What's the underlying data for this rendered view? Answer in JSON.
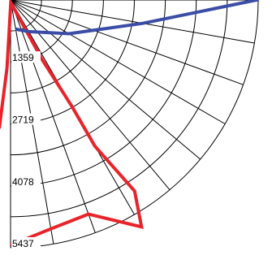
{
  "chart_data": {
    "type": "line",
    "coordinate_system": "polar",
    "title": "",
    "angle_range_deg": [
      0,
      90
    ],
    "angle_grid_step_deg": 10,
    "radial_range": [
      0,
      5437
    ],
    "radial_ticks": [
      {
        "value": 1359,
        "label": "1359"
      },
      {
        "value": 2719,
        "label": "2719"
      },
      {
        "value": 4078,
        "label": "4078"
      },
      {
        "value": 5437,
        "label": "5437"
      }
    ],
    "grid": true,
    "series": [
      {
        "color": "#e8242a",
        "points": [
          {
            "angle_deg": 0,
            "r": 5380
          },
          {
            "angle_deg": 10,
            "r": 5100
          },
          {
            "angle_deg": 20,
            "r": 5000
          },
          {
            "angle_deg": 30,
            "r": 5750
          },
          {
            "angle_deg": 33,
            "r": 5000
          },
          {
            "angle_deg": 30,
            "r": 3700
          },
          {
            "angle_deg": 30,
            "r": 2700
          },
          {
            "angle_deg": 28,
            "r": 1500
          },
          {
            "angle_deg": 5,
            "r": 60
          },
          {
            "angle_deg": -3,
            "r": 1500
          },
          {
            "angle_deg": -5,
            "r": 2800
          },
          {
            "angle_deg": -10,
            "r": 3500
          },
          {
            "angle_deg": -15,
            "r": 4600
          },
          {
            "angle_deg": -15,
            "r": 5300
          }
        ]
      },
      {
        "color": "#3b4da6",
        "points": [
          {
            "angle_deg": 10,
            "r": 650
          },
          {
            "angle_deg": 30,
            "r": 800
          },
          {
            "angle_deg": 60,
            "r": 1480
          },
          {
            "angle_deg": 80,
            "r": 2950
          },
          {
            "angle_deg": 90,
            "r": 5400
          },
          {
            "angle_deg": 95,
            "r": 5100
          },
          {
            "angle_deg": 97,
            "r": 4500
          },
          {
            "angle_deg": 98,
            "r": 3500
          },
          {
            "angle_deg": 100,
            "r": 2500
          },
          {
            "angle_deg": 108,
            "r": 600
          },
          {
            "angle_deg": 135,
            "r": 50
          }
        ]
      }
    ]
  }
}
